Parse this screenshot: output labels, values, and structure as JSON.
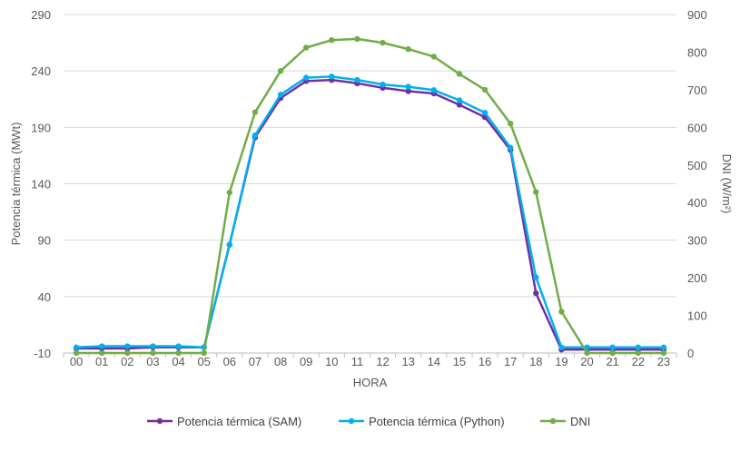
{
  "chart_data": {
    "type": "line",
    "title": "",
    "xlabel": "HORA",
    "ylabel": "Potencia térmica (MWt)",
    "y2label": "DNI (W/m²)",
    "categories": [
      "00",
      "01",
      "02",
      "03",
      "04",
      "05",
      "06",
      "07",
      "08",
      "09",
      "10",
      "11",
      "12",
      "13",
      "14",
      "15",
      "16",
      "17",
      "18",
      "19",
      "20",
      "21",
      "22",
      "23"
    ],
    "ylim": [
      -10,
      290
    ],
    "yticks": [
      -10,
      40,
      90,
      140,
      190,
      240,
      290
    ],
    "y2lim": [
      0,
      900
    ],
    "y2ticks": [
      0,
      100,
      200,
      300,
      400,
      500,
      600,
      700,
      800,
      900
    ],
    "grid": true,
    "legend_position": "bottom",
    "series": [
      {
        "name": "Potencia térmica (SAM)",
        "axis": "left",
        "color": "#7030A0",
        "values": [
          -6,
          -6,
          -6,
          -5,
          -5,
          -5,
          86,
          181,
          216,
          231,
          232,
          229,
          225,
          222,
          220,
          210,
          199,
          170,
          43,
          -7,
          -7,
          -7,
          -7,
          -7
        ]
      },
      {
        "name": "Potencia térmica (Python)",
        "axis": "left",
        "color": "#00B0F0",
        "values": [
          -5,
          -4,
          -4,
          -4,
          -4,
          -5,
          86,
          183,
          219,
          234,
          235,
          232,
          228,
          226,
          223,
          214,
          203,
          172,
          57,
          -5,
          -5,
          -5,
          -5,
          -5
        ]
      },
      {
        "name": "DNI",
        "axis": "right",
        "color": "#70AD47",
        "values": [
          0,
          0,
          0,
          0,
          0,
          0,
          427,
          640,
          750,
          812,
          832,
          835,
          825,
          808,
          788,
          742,
          700,
          610,
          428,
          110,
          0,
          0,
          0,
          0
        ]
      }
    ]
  }
}
